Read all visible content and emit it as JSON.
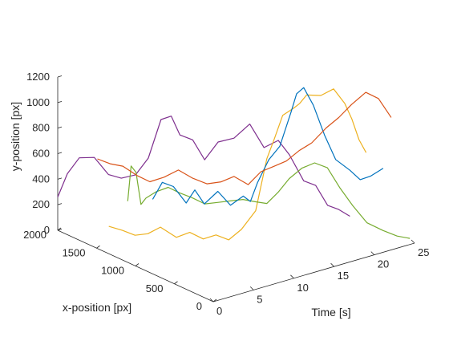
{
  "chart_data": {
    "type": "line",
    "projection": "3d",
    "grid": false,
    "box": false,
    "legend": "none",
    "xlabel": "x-position [px]",
    "ylabel": "Time [s]",
    "zlabel": "y-position [px]",
    "xlim": [
      0,
      2000
    ],
    "ylim": [
      0,
      25
    ],
    "zlim": [
      0,
      1200
    ],
    "xticks": [
      "0",
      "500",
      "1000",
      "1500",
      "2000"
    ],
    "yticks": [
      "0",
      "5",
      "10",
      "15",
      "20",
      "25"
    ],
    "zticks": [
      "0",
      "200",
      "400",
      "600",
      "800",
      "1000",
      "1200"
    ],
    "axis_color": "#262626",
    "series": [
      {
        "color": "#7E2F8E",
        "points": [
          [
            2000,
            0,
            260
          ],
          [
            1980,
            1,
            430
          ],
          [
            1930,
            2,
            550
          ],
          [
            1840,
            3,
            560
          ],
          [
            1760,
            4,
            430
          ],
          [
            1700,
            5,
            400
          ],
          [
            1620,
            6,
            430
          ],
          [
            1560,
            7,
            560
          ],
          [
            1500,
            8,
            860
          ],
          [
            1420,
            8.5,
            900
          ],
          [
            1360,
            9,
            760
          ],
          [
            1300,
            10,
            720
          ],
          [
            1250,
            11,
            560
          ],
          [
            1180,
            12,
            700
          ],
          [
            1080,
            13,
            740
          ],
          [
            980,
            14,
            860
          ],
          [
            900,
            15,
            680
          ],
          [
            820,
            16,
            740
          ],
          [
            780,
            17,
            620
          ],
          [
            700,
            18,
            420
          ],
          [
            650,
            19,
            380
          ],
          [
            600,
            20,
            220
          ],
          [
            560,
            21,
            180
          ],
          [
            520,
            22,
            120
          ]
        ]
      },
      {
        "color": "#EDB120",
        "points": [
          [
            1550,
            2,
            120
          ],
          [
            1480,
            3,
            90
          ],
          [
            1420,
            4,
            50
          ],
          [
            1360,
            5,
            60
          ],
          [
            1300,
            6,
            110
          ],
          [
            1200,
            7,
            40
          ],
          [
            1130,
            8,
            80
          ],
          [
            1060,
            9,
            30
          ],
          [
            1000,
            10,
            60
          ],
          [
            940,
            11,
            20
          ],
          [
            880,
            12,
            100
          ],
          [
            800,
            13,
            250
          ],
          [
            760,
            14,
            650
          ],
          [
            720,
            14.5,
            800
          ],
          [
            660,
            15,
            1000
          ],
          [
            620,
            16,
            1050
          ],
          [
            600,
            16.5,
            1080
          ],
          [
            560,
            17,
            1150
          ],
          [
            480,
            18,
            1150
          ],
          [
            420,
            19,
            1200
          ],
          [
            380,
            20,
            1080
          ],
          [
            340,
            20.5,
            960
          ],
          [
            300,
            21,
            800
          ],
          [
            260,
            21.5,
            700
          ]
        ]
      },
      {
        "color": "#77AC30",
        "points": [
          [
            1100,
            0,
            480
          ],
          [
            1160,
            1,
            720
          ],
          [
            1200,
            2,
            640
          ],
          [
            1240,
            3,
            360
          ],
          [
            1280,
            4,
            380
          ],
          [
            1250,
            5,
            420
          ],
          [
            1200,
            6,
            450
          ],
          [
            1160,
            7,
            400
          ],
          [
            1100,
            8,
            360
          ],
          [
            1040,
            9,
            310
          ],
          [
            980,
            10,
            320
          ],
          [
            920,
            11,
            330
          ],
          [
            860,
            12,
            340
          ],
          [
            800,
            13,
            320
          ],
          [
            760,
            14,
            300
          ],
          [
            720,
            15,
            380
          ],
          [
            680,
            16,
            480
          ],
          [
            620,
            17,
            560
          ],
          [
            560,
            18,
            600
          ],
          [
            500,
            19,
            560
          ],
          [
            440,
            20,
            400
          ],
          [
            380,
            21,
            260
          ],
          [
            300,
            22,
            130
          ],
          [
            200,
            23,
            80
          ],
          [
            120,
            24,
            40
          ],
          [
            60,
            25,
            20
          ]
        ]
      },
      {
        "color": "#0072BD",
        "points": [
          [
            1400,
            6,
            300
          ],
          [
            1380,
            7,
            420
          ],
          [
            1340,
            8,
            380
          ],
          [
            1280,
            9,
            250
          ],
          [
            1220,
            9.5,
            360
          ],
          [
            1150,
            10,
            260
          ],
          [
            1080,
            11,
            360
          ],
          [
            1020,
            12,
            250
          ],
          [
            960,
            13,
            320
          ],
          [
            920,
            13.5,
            280
          ],
          [
            880,
            14,
            430
          ],
          [
            840,
            15,
            600
          ],
          [
            800,
            16,
            700
          ],
          [
            760,
            17,
            960
          ],
          [
            740,
            17.5,
            1100
          ],
          [
            700,
            18,
            1150
          ],
          [
            680,
            19,
            1000
          ],
          [
            640,
            20,
            760
          ],
          [
            600,
            21,
            560
          ],
          [
            520,
            22,
            480
          ],
          [
            440,
            22.5,
            420
          ],
          [
            360,
            23,
            460
          ],
          [
            300,
            24,
            520
          ]
        ]
      },
      {
        "color": "#D95319",
        "points": [
          [
            1800,
            3,
            560
          ],
          [
            1740,
            4,
            520
          ],
          [
            1680,
            5,
            500
          ],
          [
            1600,
            6,
            430
          ],
          [
            1540,
            7,
            380
          ],
          [
            1460,
            8,
            420
          ],
          [
            1380,
            9,
            480
          ],
          [
            1300,
            10,
            420
          ],
          [
            1220,
            11,
            380
          ],
          [
            1140,
            12,
            400
          ],
          [
            1080,
            13,
            440
          ],
          [
            1000,
            14,
            380
          ],
          [
            940,
            15,
            480
          ],
          [
            880,
            16,
            520
          ],
          [
            820,
            17,
            560
          ],
          [
            760,
            18,
            640
          ],
          [
            700,
            19,
            700
          ],
          [
            620,
            20,
            820
          ],
          [
            560,
            21,
            900
          ],
          [
            500,
            22,
            1000
          ],
          [
            420,
            23,
            1100
          ],
          [
            360,
            24,
            1050
          ],
          [
            300,
            25,
            900
          ]
        ]
      }
    ]
  }
}
